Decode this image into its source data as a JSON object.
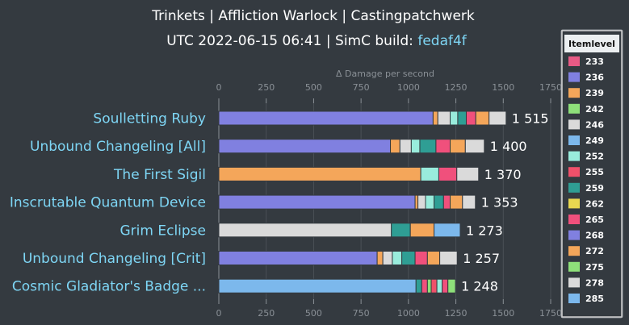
{
  "header": {
    "title": "Trinkets | Affliction Warlock | Castingpatchwerk",
    "subtitle_prefix": "UTC 2022-06-15 06:41 | SimC build: ",
    "build_hash": "fedaf4f"
  },
  "chart_data": {
    "type": "bar",
    "orientation": "horizontal",
    "stacked": true,
    "xlabel": "Δ Damage per second",
    "xlim": [
      0,
      1750
    ],
    "xticks": [
      0,
      250,
      500,
      750,
      1000,
      1250,
      1500,
      1750
    ],
    "categories": [
      "Soulletting Ruby",
      "Unbound Changeling [All]",
      "The First Sigil",
      "Inscrutable Quantum Device",
      "Grim Eclipse",
      "Unbound Changeling [Crit]",
      "Cosmic Gladiator's Badge ..."
    ],
    "totals": [
      1515,
      1400,
      1370,
      1353,
      1273,
      1257,
      1248
    ],
    "total_labels": [
      "1 515",
      "1 400",
      "1 370",
      "1 353",
      "1 273",
      "1 257",
      "1 248"
    ],
    "legend_position": "right",
    "legend": {
      "title": "Itemlevel",
      "items": [
        {
          "label": "233",
          "color": "#e85a85"
        },
        {
          "label": "236",
          "color": "#8080e0"
        },
        {
          "label": "239",
          "color": "#f4a65a"
        },
        {
          "label": "242",
          "color": "#8ee07a"
        },
        {
          "label": "246",
          "color": "#dadada"
        },
        {
          "label": "249",
          "color": "#7cb8ec"
        },
        {
          "label": "252",
          "color": "#99ecdc"
        },
        {
          "label": "255",
          "color": "#f0506a"
        },
        {
          "label": "259",
          "color": "#2f9e94"
        },
        {
          "label": "262",
          "color": "#e8d850"
        },
        {
          "label": "265",
          "color": "#f0507c"
        },
        {
          "label": "268",
          "color": "#8080e0"
        },
        {
          "label": "272",
          "color": "#f4a65a"
        },
        {
          "label": "275",
          "color": "#8ee07a"
        },
        {
          "label": "278",
          "color": "#dadada"
        },
        {
          "label": "285",
          "color": "#7cb8ec"
        }
      ]
    },
    "bars": [
      {
        "segments": [
          {
            "level": "236",
            "value": 1130
          },
          {
            "level": "239",
            "value": 25
          },
          {
            "level": "246",
            "value": 65
          },
          {
            "level": "252",
            "value": 40
          },
          {
            "level": "259",
            "value": 45
          },
          {
            "level": "265",
            "value": 50
          },
          {
            "level": "272",
            "value": 70
          },
          {
            "level": "278",
            "value": 90
          }
        ]
      },
      {
        "segments": [
          {
            "level": "236",
            "value": 905
          },
          {
            "level": "239",
            "value": 50
          },
          {
            "level": "246",
            "value": 60
          },
          {
            "level": "252",
            "value": 45
          },
          {
            "level": "259",
            "value": 85
          },
          {
            "level": "265",
            "value": 75
          },
          {
            "level": "272",
            "value": 80
          },
          {
            "level": "278",
            "value": 100
          }
        ]
      },
      {
        "segments": [
          {
            "level": "239",
            "value": 1065
          },
          {
            "level": "252",
            "value": 95
          },
          {
            "level": "265",
            "value": 95
          },
          {
            "level": "278",
            "value": 115
          }
        ]
      },
      {
        "segments": [
          {
            "level": "236",
            "value": 1035
          },
          {
            "level": "239",
            "value": 15
          },
          {
            "level": "246",
            "value": 40
          },
          {
            "level": "252",
            "value": 45
          },
          {
            "level": "259",
            "value": 50
          },
          {
            "level": "265",
            "value": 35
          },
          {
            "level": "272",
            "value": 65
          },
          {
            "level": "278",
            "value": 68
          }
        ]
      },
      {
        "segments": [
          {
            "level": "246",
            "value": 910
          },
          {
            "level": "259",
            "value": 100
          },
          {
            "level": "272",
            "value": 125
          },
          {
            "level": "285",
            "value": 138
          }
        ]
      },
      {
        "segments": [
          {
            "level": "236",
            "value": 835
          },
          {
            "level": "239",
            "value": 30
          },
          {
            "level": "246",
            "value": 50
          },
          {
            "level": "252",
            "value": 50
          },
          {
            "level": "259",
            "value": 70
          },
          {
            "level": "265",
            "value": 65
          },
          {
            "level": "272",
            "value": 65
          },
          {
            "level": "278",
            "value": 92
          }
        ]
      },
      {
        "segments": [
          {
            "level": "249",
            "value": 1040
          },
          {
            "level": "259",
            "value": 30
          },
          {
            "level": "265",
            "value": 30
          },
          {
            "level": "275",
            "value": 20
          },
          {
            "level": "255",
            "value": 30
          },
          {
            "level": "252",
            "value": 28
          },
          {
            "level": "265",
            "value": 30
          },
          {
            "level": "275",
            "value": 40
          }
        ]
      }
    ]
  }
}
